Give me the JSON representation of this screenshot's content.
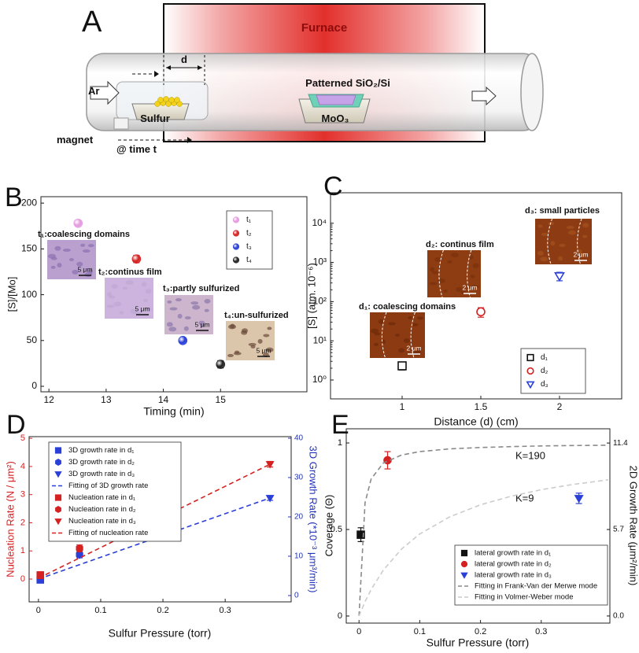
{
  "diagram": {
    "label": "A",
    "furnace": "Furnace",
    "distance": "d",
    "gas": "Ar",
    "substrate": "Patterned SiO₂/Si",
    "sulfur": "Sulfur",
    "precursor": "MoO₃",
    "magnet": "magnet",
    "time": "@ time t"
  },
  "chart_data": [
    {
      "type": "scatter",
      "panel": "B",
      "xlabel": "Timing (min)",
      "ylabel": "[S]/[Mo]",
      "xlim": [
        11.86,
        16.51
      ],
      "xticks": [
        12,
        13,
        14,
        15
      ],
      "ylim": [
        -6,
        207
      ],
      "yticks": [
        0,
        50,
        100,
        150,
        200
      ],
      "series": [
        {
          "name": "t₁",
          "color": "#e59be0",
          "marker": "sphere",
          "x": [
            12.51
          ],
          "values": [
            178
          ],
          "errors": [
            1
          ]
        },
        {
          "name": "t₂",
          "color": "#d42222",
          "marker": "sphere",
          "x": [
            13.53
          ],
          "values": [
            139
          ],
          "errors": [
            4
          ]
        },
        {
          "name": "t₃",
          "color": "#2a3fd8",
          "marker": "sphere",
          "x": [
            14.34
          ],
          "values": [
            50
          ],
          "errors": [
            1
          ]
        },
        {
          "name": "t₄",
          "color": "#222222",
          "marker": "sphere",
          "x": [
            15
          ],
          "values": [
            24
          ],
          "errors": [
            4
          ]
        }
      ],
      "insets": [
        {
          "label": "t₁:coalescing domains",
          "scale": "5 μm"
        },
        {
          "label": "t₂:continus film",
          "scale": "5 μm"
        },
        {
          "label": "t₃:partly sulfurized",
          "scale": "5 μm"
        },
        {
          "label": "t₄:un-sulfurized",
          "scale": "5 μm"
        }
      ]
    },
    {
      "type": "scatter",
      "panel": "C",
      "xlabel": "Distance (d) (cm)",
      "ylabel": "[S] (atm. 10⁻⁶)",
      "log_y": true,
      "xlim": [
        0.545,
        2.395
      ],
      "xticks": [
        1,
        1.5,
        2
      ],
      "ylim": [
        0.33,
        60000
      ],
      "yticks": [
        {
          "value": 1,
          "label": "10⁰"
        },
        {
          "value": 10,
          "label": "10¹"
        },
        {
          "value": 100,
          "label": "10²"
        },
        {
          "value": 1000,
          "label": "10³"
        },
        {
          "value": 10000,
          "label": "10⁴"
        }
      ],
      "series": [
        {
          "name": "d₁",
          "color": "#111111",
          "marker": "square",
          "open": true,
          "x": [
            1
          ],
          "values": [
            2.3
          ],
          "errors": [
            0.5
          ]
        },
        {
          "name": "d₂",
          "color": "#d42222",
          "marker": "circle",
          "open": true,
          "x": [
            1.5
          ],
          "values": [
            55
          ],
          "errors": [
            15
          ]
        },
        {
          "name": "d₃",
          "color": "#2a3fd8",
          "marker": "triangle-down",
          "open": true,
          "x": [
            2
          ],
          "values": [
            450
          ],
          "errors": [
            110
          ]
        }
      ],
      "insets": [
        {
          "label": "d₁: coalescing domains",
          "scale": "2 μm"
        },
        {
          "label": "d₂: continus film",
          "scale": "2 μm"
        },
        {
          "label": "d₃: small particles",
          "scale": "2 μm"
        }
      ]
    },
    {
      "type": "scatter",
      "panel": "D",
      "xlabel": "Sulfur Pressure (torr)",
      "ylabel": "Nucleation Rate (N / μm²)",
      "y2label": "3D Growth Rate (*10⁻³ μm³/min)",
      "y_color": "#d42222",
      "y2_color": "#2233bb",
      "xlim": [
        -0.015,
        0.406
      ],
      "xticks": [
        0,
        0.1,
        0.2,
        0.3
      ],
      "ylim": [
        -0.81,
        5.06
      ],
      "yticks": [
        0,
        1,
        2,
        3,
        4,
        5
      ],
      "y2lim": [
        -1.6,
        40.4
      ],
      "y2ticks": [
        0,
        10,
        20,
        30,
        40
      ],
      "series": [
        {
          "name": "3D growth rate in d₁",
          "color": "#2a3fd8",
          "marker": "square",
          "axis": "y2",
          "x": [
            0.003
          ],
          "values": [
            4
          ],
          "errors": [
            0.8
          ]
        },
        {
          "name": "3D growth rate in d₂",
          "color": "#2a3fd8",
          "marker": "hexagon",
          "axis": "y2",
          "x": [
            0.066
          ],
          "values": [
            10.4
          ],
          "errors": [
            0.8
          ]
        },
        {
          "name": "3D growth rate in d₃",
          "color": "#2a3fd8",
          "marker": "triangle-down",
          "axis": "y2",
          "x": [
            0.372
          ],
          "values": [
            24.8
          ],
          "errors": [
            0.6
          ]
        },
        {
          "name": "Fitting of 3D growth rate",
          "color": "#2a3fd8",
          "type": "line",
          "dash": true,
          "axis": "y2",
          "x": [
            0,
            0.372
          ],
          "values": [
            4.2,
            24.8
          ]
        },
        {
          "name": "Nucleation rate in d₁",
          "color": "#d42222",
          "marker": "square",
          "x": [
            0.003
          ],
          "values": [
            0.14
          ],
          "errors": [
            0.12
          ]
        },
        {
          "name": "Nucleation rate in d₂",
          "color": "#d42222",
          "marker": "hexagon",
          "x": [
            0.066
          ],
          "values": [
            1.09
          ],
          "errors": [
            0.12
          ]
        },
        {
          "name": "Nucleation rate in d₃",
          "color": "#d42222",
          "marker": "triangle-down",
          "x": [
            0.372
          ],
          "values": [
            4.08
          ],
          "errors": [
            0.1
          ]
        },
        {
          "name": "Fitting of nucleation rate",
          "color": "#d42222",
          "type": "line",
          "dash": true,
          "x": [
            0,
            0.372
          ],
          "values": [
            0.03,
            4.08
          ]
        }
      ]
    },
    {
      "type": "scatter",
      "panel": "E",
      "xlabel": "Sulfur Pressure (torr)",
      "ylabel": "Coverage (Θ)",
      "y2label": "2D Growth Rate (μm²/min)",
      "xlim": [
        -0.021,
        0.413
      ],
      "xticks": [
        0,
        0.1,
        0.2,
        0.3
      ],
      "ylim": [
        -0.041,
        1.082
      ],
      "yticks": [
        0,
        0.5,
        1
      ],
      "y2lim": [
        -0.47,
        12.34
      ],
      "y2ticks": [
        {
          "value": 0,
          "label": "0.0"
        },
        5.7,
        11.4
      ],
      "annotations": [
        "K=190",
        "K=9"
      ],
      "series": [
        {
          "name": "lateral growth rate in d₁",
          "color": "#111111",
          "marker": "square",
          "x": [
            0.003
          ],
          "values": [
            0.47
          ],
          "errors": [
            0.04
          ]
        },
        {
          "name": "lateral growth rate in d₂",
          "color": "#d42222",
          "marker": "circle",
          "x": [
            0.047
          ],
          "values": [
            0.9
          ],
          "errors": [
            0.05
          ]
        },
        {
          "name": "lateral growth rate in d₃",
          "color": "#2a3fd8",
          "marker": "triangle-down",
          "x": [
            0.362
          ],
          "values": [
            0.68
          ],
          "errors": [
            0.03
          ]
        },
        {
          "name": "Fitting in Frank-Van der Merwe mode",
          "color": "#8a8a8a",
          "type": "line",
          "dash": true,
          "x": [
            0,
            0.01,
            0.02,
            0.04,
            0.07,
            0.1,
            0.15,
            0.2,
            0.25,
            0.3,
            0.35,
            0.41
          ],
          "values": [
            0,
            0.655,
            0.792,
            0.884,
            0.93,
            0.95,
            0.966,
            0.974,
            0.979,
            0.983,
            0.985,
            0.987
          ]
        },
        {
          "name": "Fitting in Volmer-Weber mode",
          "color": "#cccccc",
          "type": "line",
          "dash": true,
          "x": [
            0,
            0.01,
            0.02,
            0.04,
            0.07,
            0.1,
            0.15,
            0.2,
            0.25,
            0.3,
            0.35,
            0.41
          ],
          "values": [
            0,
            0.083,
            0.153,
            0.265,
            0.387,
            0.474,
            0.574,
            0.643,
            0.692,
            0.73,
            0.759,
            0.787
          ]
        }
      ]
    }
  ]
}
